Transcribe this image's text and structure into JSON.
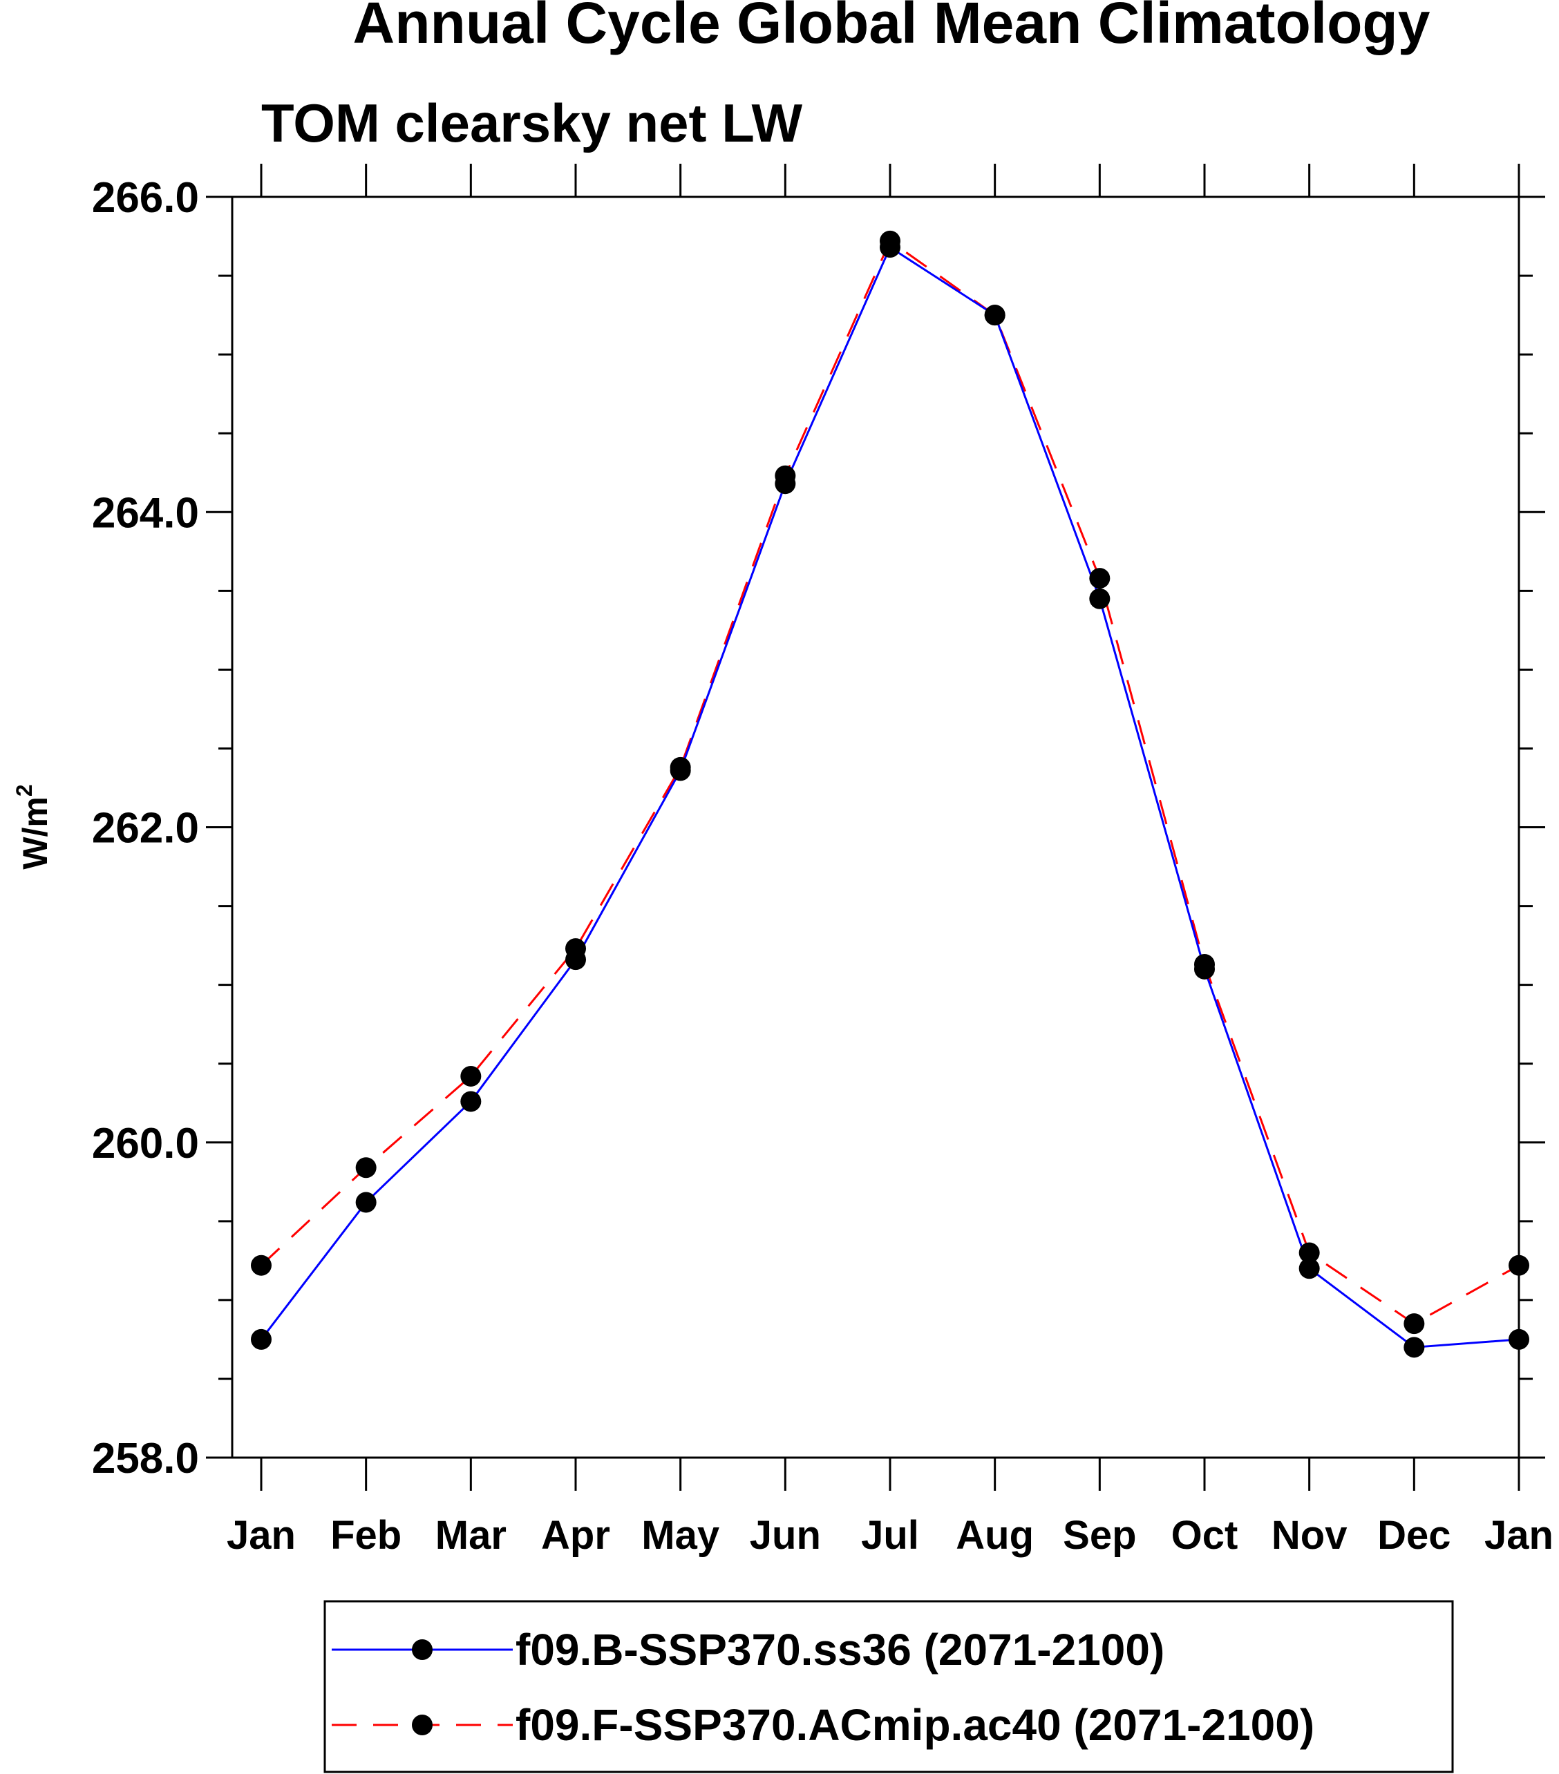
{
  "chart_data": {
    "type": "line",
    "title": "Annual Cycle Global Mean Climatology",
    "subtitle": "TOM clearsky net LW",
    "ylabel_base": "W/m",
    "ylabel_sup": "2",
    "categories": [
      "Jan",
      "Feb",
      "Mar",
      "Apr",
      "May",
      "Jun",
      "Jul",
      "Aug",
      "Sep",
      "Oct",
      "Nov",
      "Dec",
      "Jan"
    ],
    "ylim": [
      258.0,
      266.0
    ],
    "yticks": [
      "258.0",
      "260.0",
      "262.0",
      "264.0",
      "266.0"
    ],
    "series": [
      {
        "name": "f09.B-SSP370.ss36 (2071-2100)",
        "color": "#0000ff",
        "style": "solid",
        "values": [
          258.75,
          259.62,
          260.26,
          261.16,
          262.36,
          264.18,
          265.68,
          265.25,
          263.45,
          261.1,
          259.2,
          258.7,
          258.75
        ]
      },
      {
        "name": "f09.F-SSP370.ACmip.ac40 (2071-2100)",
        "color": "#ff0000",
        "style": "dashed",
        "values": [
          259.22,
          259.84,
          260.42,
          261.23,
          262.38,
          264.23,
          265.72,
          265.25,
          263.58,
          261.13,
          259.3,
          258.85,
          259.22
        ]
      }
    ]
  }
}
